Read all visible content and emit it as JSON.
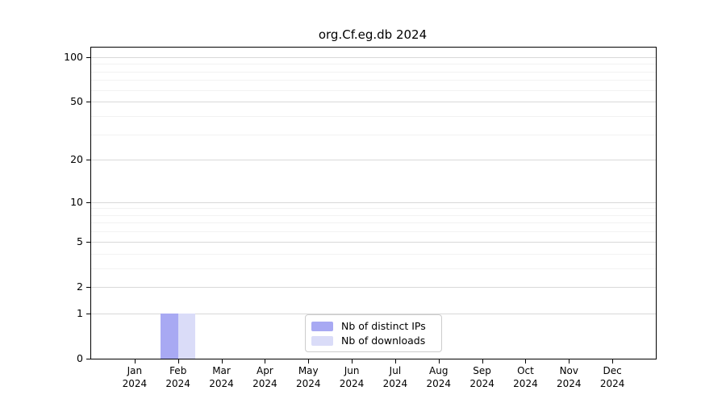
{
  "chart_data": {
    "type": "bar",
    "title": "org.Cf.eg.db 2024",
    "categories": [
      "Jan",
      "Feb",
      "Mar",
      "Apr",
      "May",
      "Jun",
      "Jul",
      "Aug",
      "Sep",
      "Oct",
      "Nov",
      "Dec"
    ],
    "year_label": "2024",
    "series": [
      {
        "name": "Nb of distinct IPs",
        "key": "distinct-ips",
        "color": "#a8a9f3",
        "values": [
          0,
          1,
          0,
          0,
          0,
          0,
          0,
          0,
          0,
          0,
          0,
          0
        ]
      },
      {
        "name": "Nb of downloads",
        "key": "downloads",
        "color": "#dadcf8",
        "values": [
          0,
          1,
          0,
          0,
          0,
          0,
          0,
          0,
          0,
          0,
          0,
          0
        ]
      }
    ],
    "y_scale": "log1p",
    "ylim": [
      0,
      116
    ],
    "y_ticks_major": [
      0,
      1,
      2,
      5,
      10,
      20,
      50,
      100
    ],
    "y_ticks_minor": [
      3,
      4,
      6,
      7,
      8,
      9,
      30,
      40,
      60,
      70,
      80,
      90
    ],
    "grid": "horizontal",
    "legend_position": "bottom-center-inside",
    "colors": {
      "axis": "#000000",
      "grid_major": "#d9d9d9",
      "grid_minor": "#f2f2f2",
      "background": "#ffffff",
      "legend_border": "#cccccc"
    }
  },
  "legend": {
    "items": [
      {
        "label": "Nb of distinct IPs"
      },
      {
        "label": "Nb of downloads"
      }
    ]
  }
}
